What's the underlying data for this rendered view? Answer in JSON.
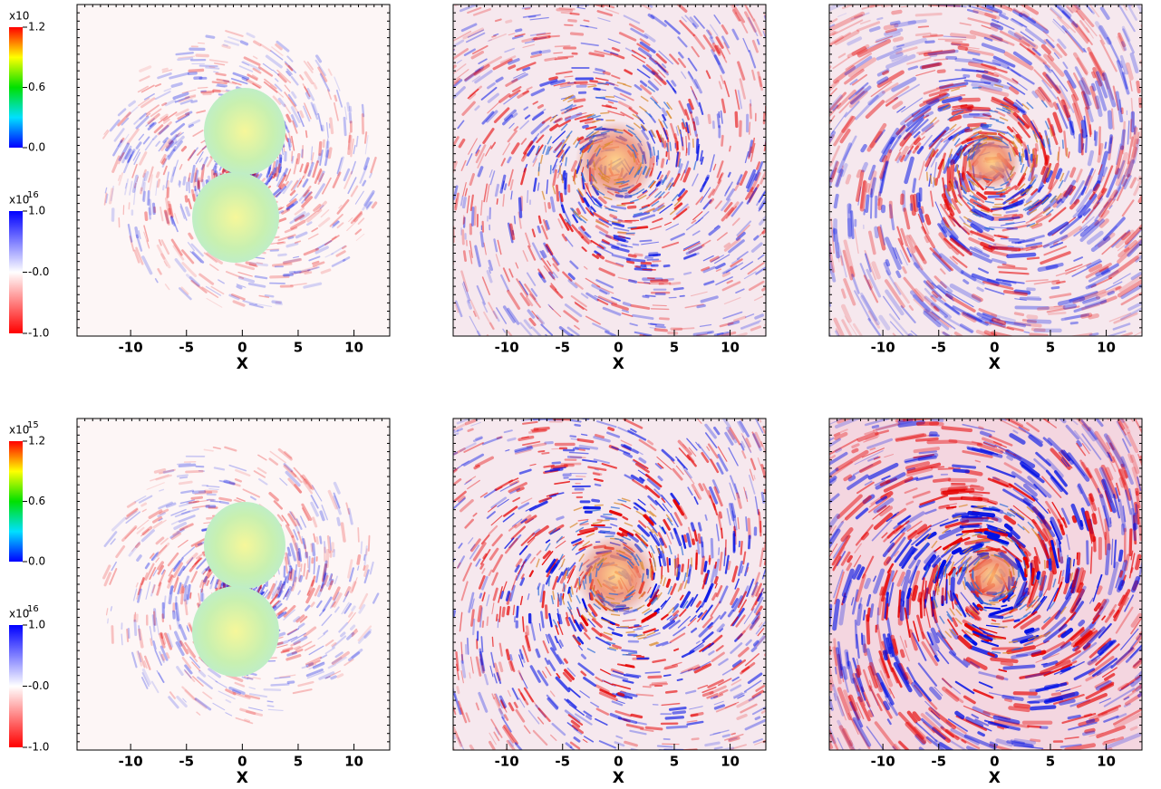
{
  "figure": {
    "xaxis": {
      "label": "X",
      "xlim": [
        -14.8,
        13.2
      ],
      "xticks": [
        -10,
        -5,
        0,
        5,
        10
      ]
    },
    "rows": [
      {
        "colorbars": [
          {
            "multiplier": "x10",
            "lim": [
              0,
              1.2
            ],
            "ticks": [
              1.2,
              0.6,
              {
                "value": 0,
                "label": "0.0"
              }
            ]
          },
          {
            "multiplier": "x10",
            "exponent": "16",
            "lim": [
              -1,
              1
            ],
            "ticks": [
              {
                "value": 1,
                "label": "1.0"
              },
              {
                "value": 0,
                "label": "-0.0"
              },
              {
                "value": -1,
                "label": "-1.0"
              }
            ]
          }
        ]
      },
      {
        "colorbars": [
          {
            "multiplier": "x10",
            "exponent": "15",
            "lim": [
              0,
              1.2
            ],
            "ticks": [
              1.2,
              0.6,
              {
                "value": 0,
                "label": "0.0"
              }
            ]
          },
          {
            "multiplier": "x10",
            "exponent": "16",
            "lim": [
              -1,
              1
            ],
            "ticks": [
              {
                "value": 1,
                "label": "1.0"
              },
              {
                "value": 0,
                "label": "-0.0"
              },
              {
                "value": -1,
                "label": "-1.0"
              }
            ]
          }
        ]
      }
    ]
  }
}
